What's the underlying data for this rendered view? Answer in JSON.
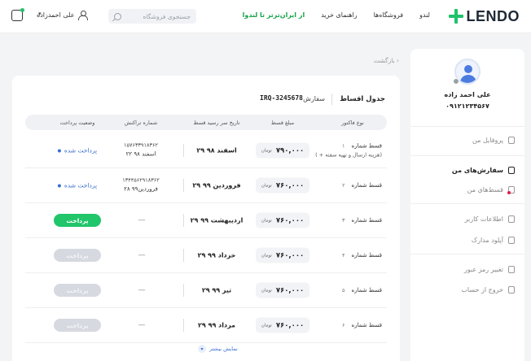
{
  "header": {
    "logo": "LENDO",
    "nav": [
      {
        "label": "لندو",
        "highlight": false
      },
      {
        "label": "فروشگاه‌ها",
        "highlight": false
      },
      {
        "label": "راهنمای خرید",
        "highlight": false
      },
      {
        "label": "از ایران‌ترتر تا لندوا",
        "highlight": true
      }
    ],
    "search_placeholder": "جستجوی فروشگاه",
    "user_name": "علی احمدزاده",
    "accent_color": "#1fc26b"
  },
  "sidebar": {
    "name": "علی احمد زاده",
    "phone": "۰۹۱۲۱۲۳۴۵۶۷",
    "items": [
      {
        "label": "پروفایل من",
        "icon": "profile-icon",
        "active": false
      },
      {
        "label": "سفارش‌های من",
        "icon": "orders-icon",
        "active": true
      },
      {
        "label": "قسط‌های من",
        "icon": "installments-icon",
        "active": false,
        "alert": true
      },
      {
        "label": "اطلاعات کاربر",
        "icon": "user-info-icon",
        "active": false
      },
      {
        "label": "آپلود مدارک",
        "icon": "upload-icon",
        "active": false
      },
      {
        "label": "تغییر رمز عبور",
        "icon": "lock-icon",
        "active": false
      },
      {
        "label": "خروج از حساب",
        "icon": "logout-icon",
        "active": false
      }
    ]
  },
  "breadcrumb": "بازگشت",
  "main": {
    "title": "جدول اقساط",
    "order_label": "سفارش",
    "order_number": "IRQ-3245678",
    "columns": [
      "نوع فاکتور",
      "مبلغ قسط",
      "تاریخ سر رسید قسط",
      "شماره تراکنش",
      "وضعیت پرداخت"
    ],
    "rows": [
      {
        "installment": "قسط شماره",
        "number": "۱",
        "note": "( + هزینه ارسال و تهیه سفته)",
        "amount": "۷۹۰,۰۰۰",
        "currency": "تومان",
        "due_date": "۲۹ اسفند ۹۸",
        "tracking": "۱۵۷۶۳۳۹۱۸۳۶۲",
        "tracking_date": "۲۲ اسفند ۹۸",
        "status": "پرداخت شده",
        "state": "paid"
      },
      {
        "installment": "قسط شماره",
        "number": "۲",
        "note": "",
        "amount": "۷۶۰,۰۰۰",
        "currency": "تومان",
        "due_date": "۲۹ فروردین ۹۹",
        "tracking": "۱۳۴۴۵۶۲۹۱۸۳۶۲",
        "tracking_date": "۲۸ فروردین۹۹",
        "status": "پرداخت شده",
        "state": "paid"
      },
      {
        "installment": "قسط شماره",
        "number": "۳",
        "note": "",
        "amount": "۷۶۰,۰۰۰",
        "currency": "تومان",
        "due_date": "۲۹ اردیبهشت ۹۹",
        "tracking": "—",
        "tracking_date": "",
        "status": "پرداخت",
        "state": "payable"
      },
      {
        "installment": "قسط شماره",
        "number": "۴",
        "note": "",
        "amount": "۷۶۰,۰۰۰",
        "currency": "تومان",
        "due_date": "۲۹ خرداد ۹۹",
        "tracking": "—",
        "tracking_date": "",
        "status": "پرداخت",
        "state": "disabled"
      },
      {
        "installment": "قسط شماره",
        "number": "۵",
        "note": "",
        "amount": "۷۶۰,۰۰۰",
        "currency": "تومان",
        "due_date": "۲۹ تیر ۹۹",
        "tracking": "—",
        "tracking_date": "",
        "status": "پرداخت",
        "state": "disabled"
      },
      {
        "installment": "قسط شماره",
        "number": "۶",
        "note": "",
        "amount": "۷۶۰,۰۰۰",
        "currency": "تومان",
        "due_date": "۲۹ مرداد ۹۹",
        "tracking": "—",
        "tracking_date": "",
        "status": "پرداخت",
        "state": "disabled"
      }
    ],
    "show_more": "نمایش بیشتر"
  }
}
